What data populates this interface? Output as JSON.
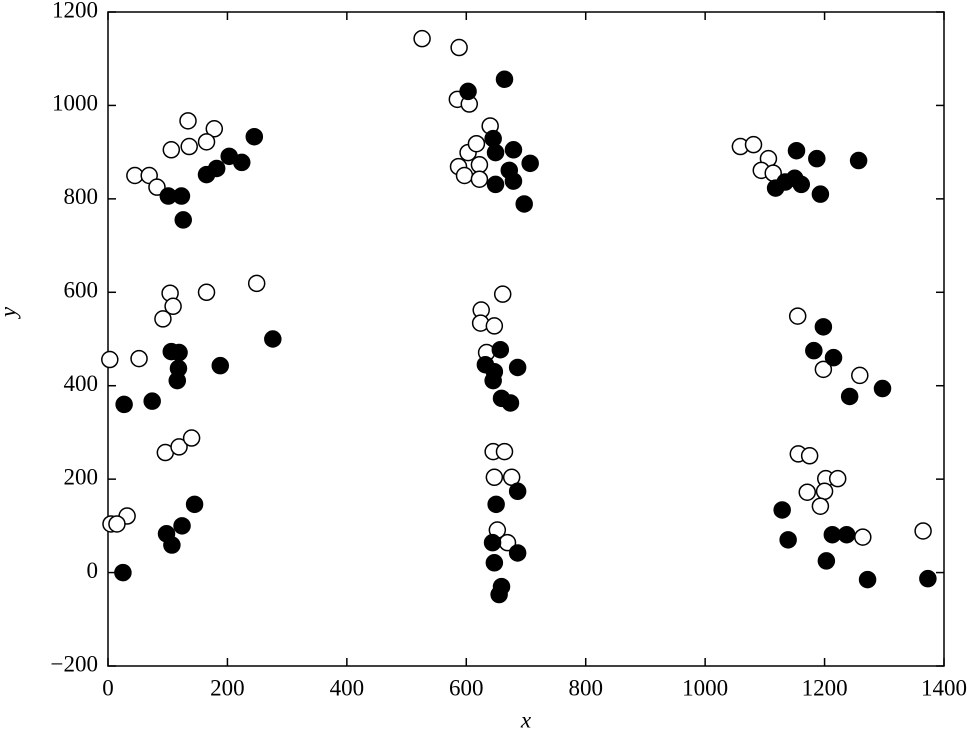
{
  "chart_data": {
    "type": "scatter",
    "xlabel": "x",
    "ylabel": "y",
    "xlim": [
      0,
      1400
    ],
    "xticks": [
      0,
      200,
      400,
      600,
      800,
      1000,
      1200,
      1400
    ],
    "ylim": [
      -200,
      1200
    ],
    "yticks": [
      {
        "value": -200,
        "label": "−200"
      },
      0,
      200,
      400,
      600,
      800,
      1000,
      1200
    ],
    "grid": false,
    "series": [
      {
        "color": "#000000",
        "filled": false,
        "x": [
          526,
          588,
          585,
          605,
          640,
          603,
          617,
          587,
          597,
          622,
          622,
          134,
          178,
          136,
          165,
          106,
          45,
          69,
          82,
          1059,
          1081,
          1106,
          1094,
          1114,
          661,
          625,
          624,
          647,
          634,
          249,
          165,
          104,
          109,
          92,
          3,
          52,
          1155,
          1198,
          1259,
          645,
          664,
          647,
          676,
          1156,
          1175,
          1202,
          1222,
          1171,
          1200,
          1193,
          1264,
          1365,
          96,
          119,
          140,
          32,
          5,
          15,
          652,
          669
        ],
        "y": [
          1143,
          1124,
          1013,
          1003,
          956,
          899,
          918,
          869,
          850,
          873,
          842,
          967,
          950,
          912,
          922,
          905,
          850,
          850,
          825,
          912,
          916,
          886,
          861,
          855,
          596,
          562,
          534,
          528,
          471,
          619,
          600,
          598,
          570,
          543,
          456,
          458,
          549,
          435,
          422,
          259,
          259,
          204,
          204,
          254,
          250,
          201,
          201,
          172,
          174,
          142,
          76,
          89,
          257,
          269,
          288,
          121,
          104,
          104,
          91,
          64
        ]
      },
      {
        "color": "#000000",
        "filled": true,
        "x": [
          664,
          603,
          645,
          649,
          679,
          707,
          672,
          679,
          649,
          697,
          245,
          203,
          224,
          182,
          165,
          101,
          123,
          126,
          1153,
          1187,
          1257,
          1150,
          1134,
          1118,
          1161,
          1193,
          276,
          106,
          119,
          118,
          116,
          188,
          27,
          74,
          657,
          632,
          647,
          645,
          686,
          659,
          674,
          1198,
          1182,
          1215,
          1297,
          1242,
          686,
          650,
          644,
          686,
          647,
          659,
          655,
          1129,
          1139,
          1213,
          1237,
          1203,
          1272,
          1373,
          25,
          145,
          124,
          98,
          107
        ],
        "y": [
          1056,
          1030,
          929,
          899,
          905,
          876,
          861,
          838,
          831,
          789,
          933,
          891,
          878,
          865,
          852,
          806,
          806,
          755,
          903,
          886,
          882,
          844,
          836,
          823,
          831,
          810,
          500,
          473,
          471,
          437,
          411,
          443,
          360,
          367,
          477,
          445,
          430,
          411,
          439,
          373,
          363,
          526,
          475,
          460,
          394,
          377,
          174,
          146,
          64,
          42,
          21,
          -30,
          -47,
          134,
          70,
          81,
          81,
          25,
          -15,
          -13,
          0,
          146,
          100,
          83,
          59
        ]
      }
    ]
  }
}
